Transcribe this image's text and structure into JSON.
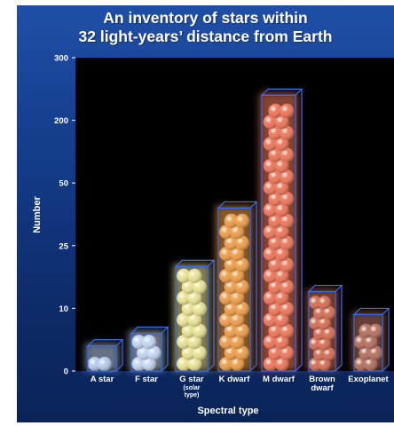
{
  "chart_data": {
    "type": "bar",
    "title": "An inventory of stars within 32 light-years’ distance from Earth",
    "title_lines": [
      "An inventory of stars within",
      "32 light-years’ distance from Earth"
    ],
    "xlabel": "Spectral type",
    "ylabel": "Number",
    "yticks": [
      0,
      10,
      25,
      50,
      200,
      300
    ],
    "categories": [
      {
        "label": "A star",
        "sublabel": ""
      },
      {
        "label": "F star",
        "sublabel": ""
      },
      {
        "label": "G star",
        "sublabel": "(solar type)",
        "sublabel_lines": [
          "(solar",
          "type)"
        ]
      },
      {
        "label": "K dwarf",
        "sublabel": ""
      },
      {
        "label": "M dwarf",
        "sublabel": ""
      },
      {
        "label": "Brown dwarf",
        "label_lines": [
          "Brown",
          "dwarf"
        ],
        "sublabel": ""
      },
      {
        "label": "Exoplanet",
        "sublabel": ""
      }
    ],
    "values": [
      4,
      6,
      20,
      40,
      240,
      14,
      9
    ],
    "colors": {
      "A star": "#bcd0f2",
      "F star": "#c8daf6",
      "G star": "#eee89a",
      "K dwarf": "#f3a350",
      "M dwarf": "#f27c60",
      "Brown dwarf": "#d9745b",
      "Exoplanet": "#b87564"
    },
    "box_color": "#3a6cf0",
    "plot_background": "#000000"
  }
}
